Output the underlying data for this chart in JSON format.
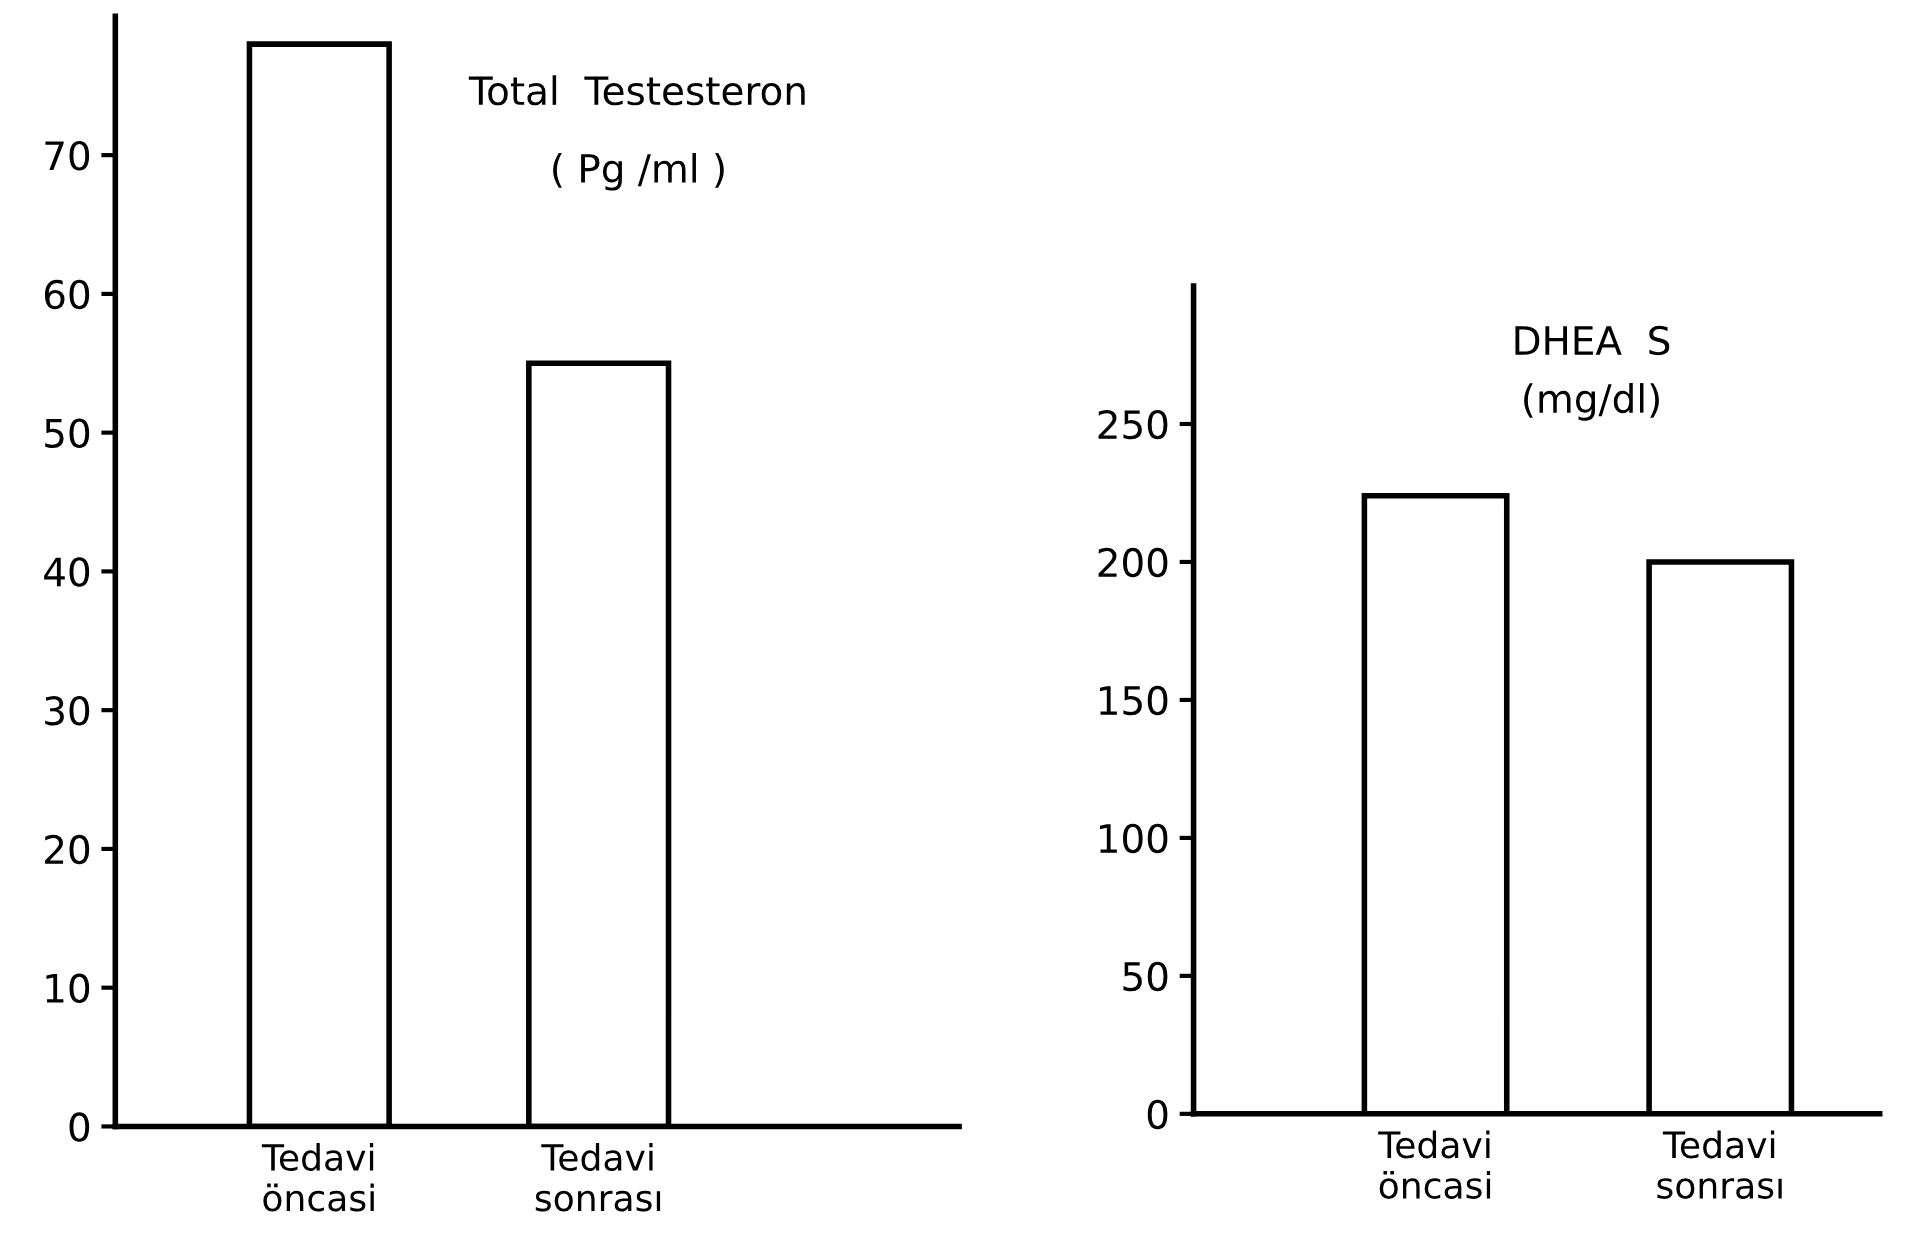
{
  "chart_data": [
    {
      "type": "bar",
      "title": "Total  Testesteron",
      "subtitle": "( Pg /ml )",
      "categories": [
        "Tedavi\nöncasi",
        "Tedavi\nsonrası"
      ],
      "values": [
        78,
        55
      ],
      "color": "#ffffff",
      "ylim": [
        0,
        80
      ],
      "yticks": [
        0,
        10,
        20,
        30,
        40,
        50,
        60,
        70
      ],
      "grid": false,
      "legend": false
    },
    {
      "type": "bar",
      "title": "DHEA  S",
      "subtitle": "(mg/dl)",
      "categories": [
        "Tedavi\nöncasi",
        "Tedavi\nsonrası"
      ],
      "values": [
        224,
        200
      ],
      "color": "#ffffff",
      "ylim": [
        0,
        300
      ],
      "yticks": [
        0,
        50,
        100,
        150,
        200,
        250
      ],
      "grid": false,
      "legend": false
    }
  ]
}
